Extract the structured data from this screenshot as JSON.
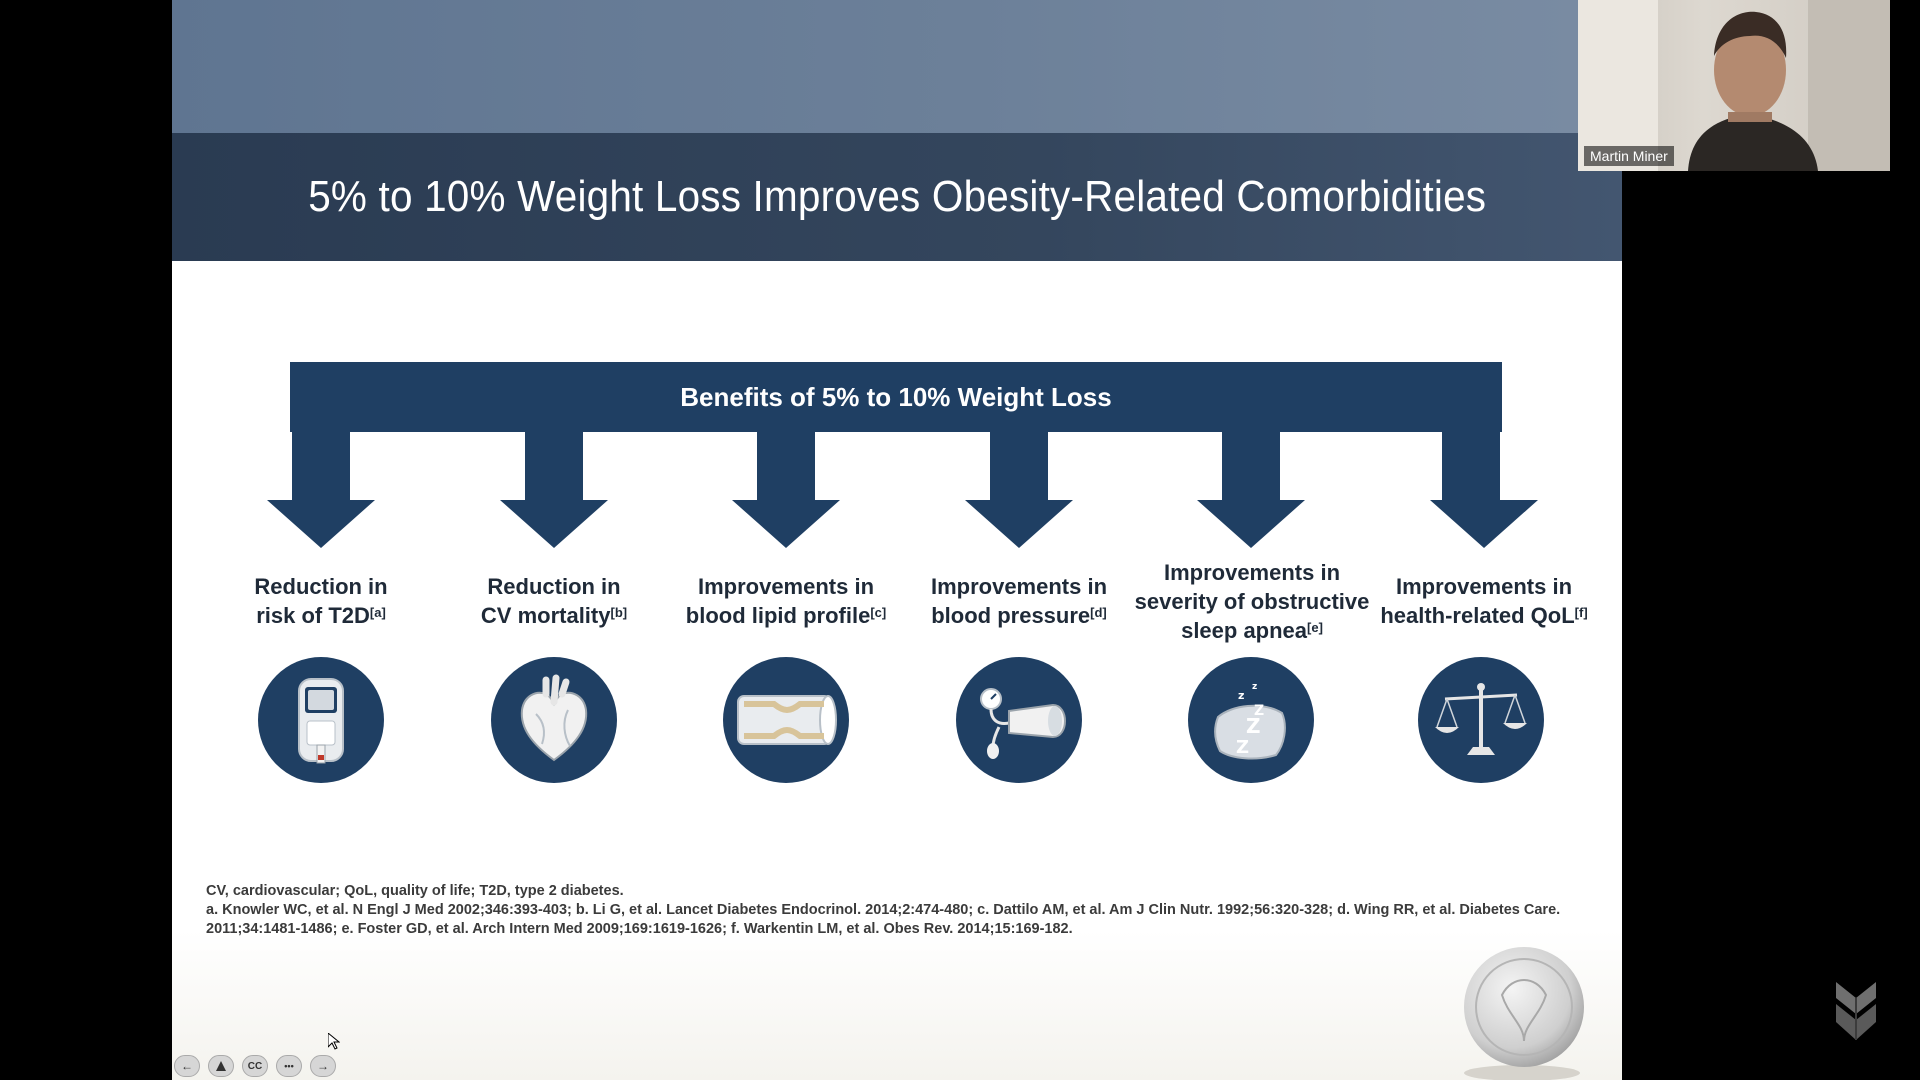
{
  "slide": {
    "title": "5% to 10% Weight Loss Improves Obesity-Related Comorbidities",
    "bracket_title": "Benefits of 5% to 10% Weight Loss",
    "benefits": [
      {
        "line1": "Reduction in",
        "line2": "risk of T2D",
        "line3": "",
        "ref": "[a]",
        "icon": "glucose-meter-icon"
      },
      {
        "line1": "Reduction in",
        "line2": "CV mortality",
        "line3": "",
        "ref": "[b]",
        "icon": "heart-icon"
      },
      {
        "line1": "Improvements in",
        "line2": "blood lipid profile",
        "line3": "",
        "ref": "[c]",
        "icon": "artery-icon"
      },
      {
        "line1": "Improvements in",
        "line2": "blood pressure",
        "line3": "",
        "ref": "[d]",
        "icon": "blood-pressure-cuff-icon"
      },
      {
        "line1": "Improvements in",
        "line2": "severity of obstructive",
        "line3": "sleep apnea",
        "ref": "[e]",
        "icon": "sleep-pillow-icon"
      },
      {
        "line1": "Improvements in",
        "line2": "health-related QoL",
        "line3": "",
        "ref": "[f]",
        "icon": "scales-icon"
      }
    ],
    "footnotes": {
      "abbreviations": "CV, cardiovascular; QoL, quality of life; T2D, type 2 diabetes.",
      "references": "a. Knowler WC, et al. N Engl J Med 2002;346:393-403; b. Li G, et al. Lancet Diabetes Endocrinol. 2014;2:474-480; c. Dattilo AM, et al. Am J Clin Nutr. 1992;56:320-328; d. Wing RR, et al. Diabetes Care. 2011;34:1481-1486; e. Foster GD, et al. Arch Intern Med 2009;169:1619-1626; f. Warkentin LM, et al. Obes Rev. 2014;15:169-182."
    }
  },
  "webcam": {
    "participant_name": "Martin Miner"
  },
  "player_controls": {
    "prev_label": "←",
    "cc_label": "CC",
    "more_label": "•••",
    "next_label": "→"
  },
  "colors": {
    "navy": "#1f3f63",
    "title_band": "#2f4159",
    "top_band": "#667b95"
  }
}
